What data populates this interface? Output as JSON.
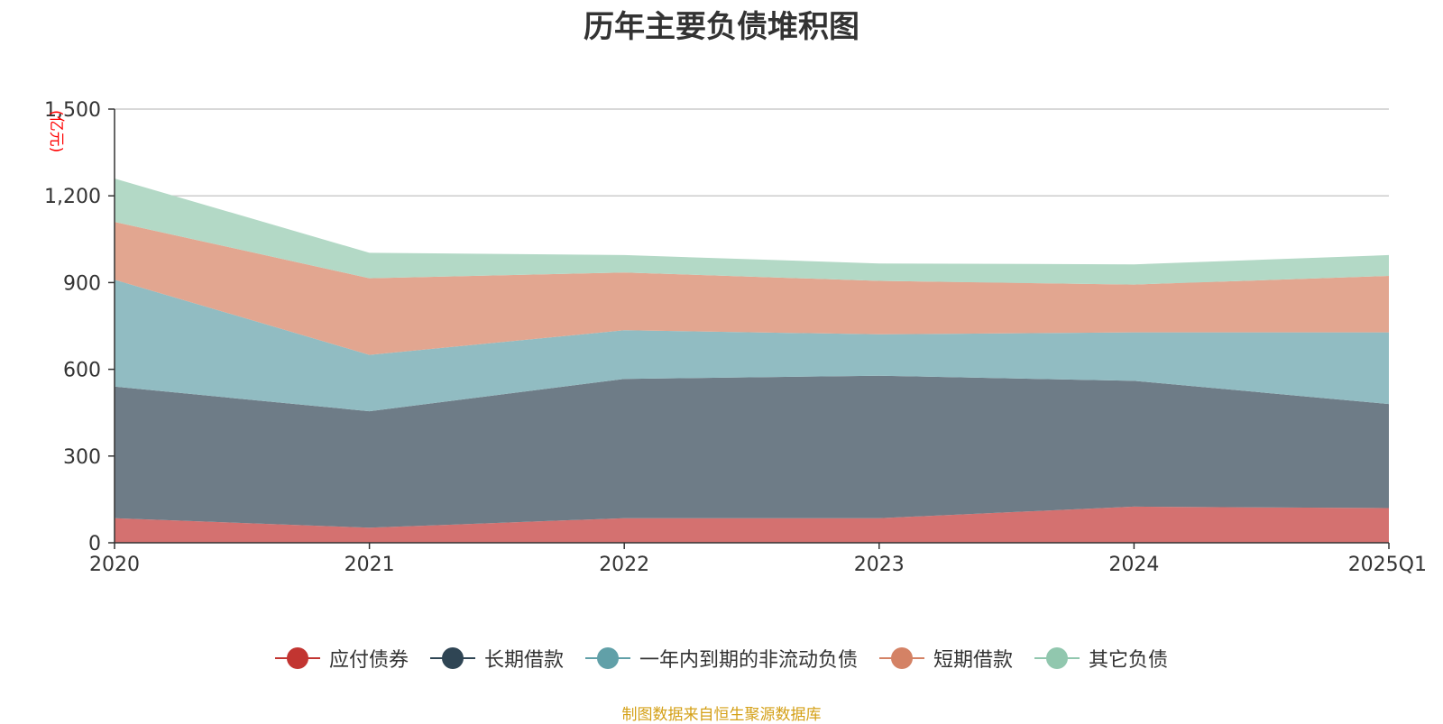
{
  "chart_data": {
    "type": "area",
    "stacked": true,
    "title": "历年主要负债堆积图",
    "unit_label": "(亿元)",
    "categories": [
      "2020",
      "2021",
      "2022",
      "2023",
      "2024",
      "2025Q1"
    ],
    "ylim": [
      0,
      1500
    ],
    "yticks": [
      0,
      300,
      600,
      900,
      1200,
      1500
    ],
    "ytick_labels": [
      "0",
      "300",
      "600",
      "900",
      "1,200",
      "1,500"
    ],
    "grid": true,
    "legend_position": "bottom",
    "series": [
      {
        "name": "应付债券",
        "color": "#c23531",
        "fill": "#d47170",
        "values": [
          85,
          52,
          85,
          85,
          125,
          120
        ]
      },
      {
        "name": "长期借款",
        "color": "#2f4554",
        "fill": "#6e7c87",
        "values": [
          455,
          403,
          482,
          493,
          435,
          360
        ]
      },
      {
        "name": "一年内到期的非流动负债",
        "color": "#61a0a8",
        "fill": "#91bcc2",
        "values": [
          370,
          195,
          168,
          143,
          168,
          248
        ]
      },
      {
        "name": "短期借款",
        "color": "#d48265",
        "fill": "#e2a690",
        "values": [
          200,
          265,
          200,
          185,
          165,
          195
        ]
      },
      {
        "name": "其它负债",
        "color": "#91c7ae",
        "fill": "#b3d9c6",
        "values": [
          150,
          88,
          60,
          60,
          70,
          72
        ]
      }
    ]
  },
  "source_note": "制图数据来自恒生聚源数据库"
}
